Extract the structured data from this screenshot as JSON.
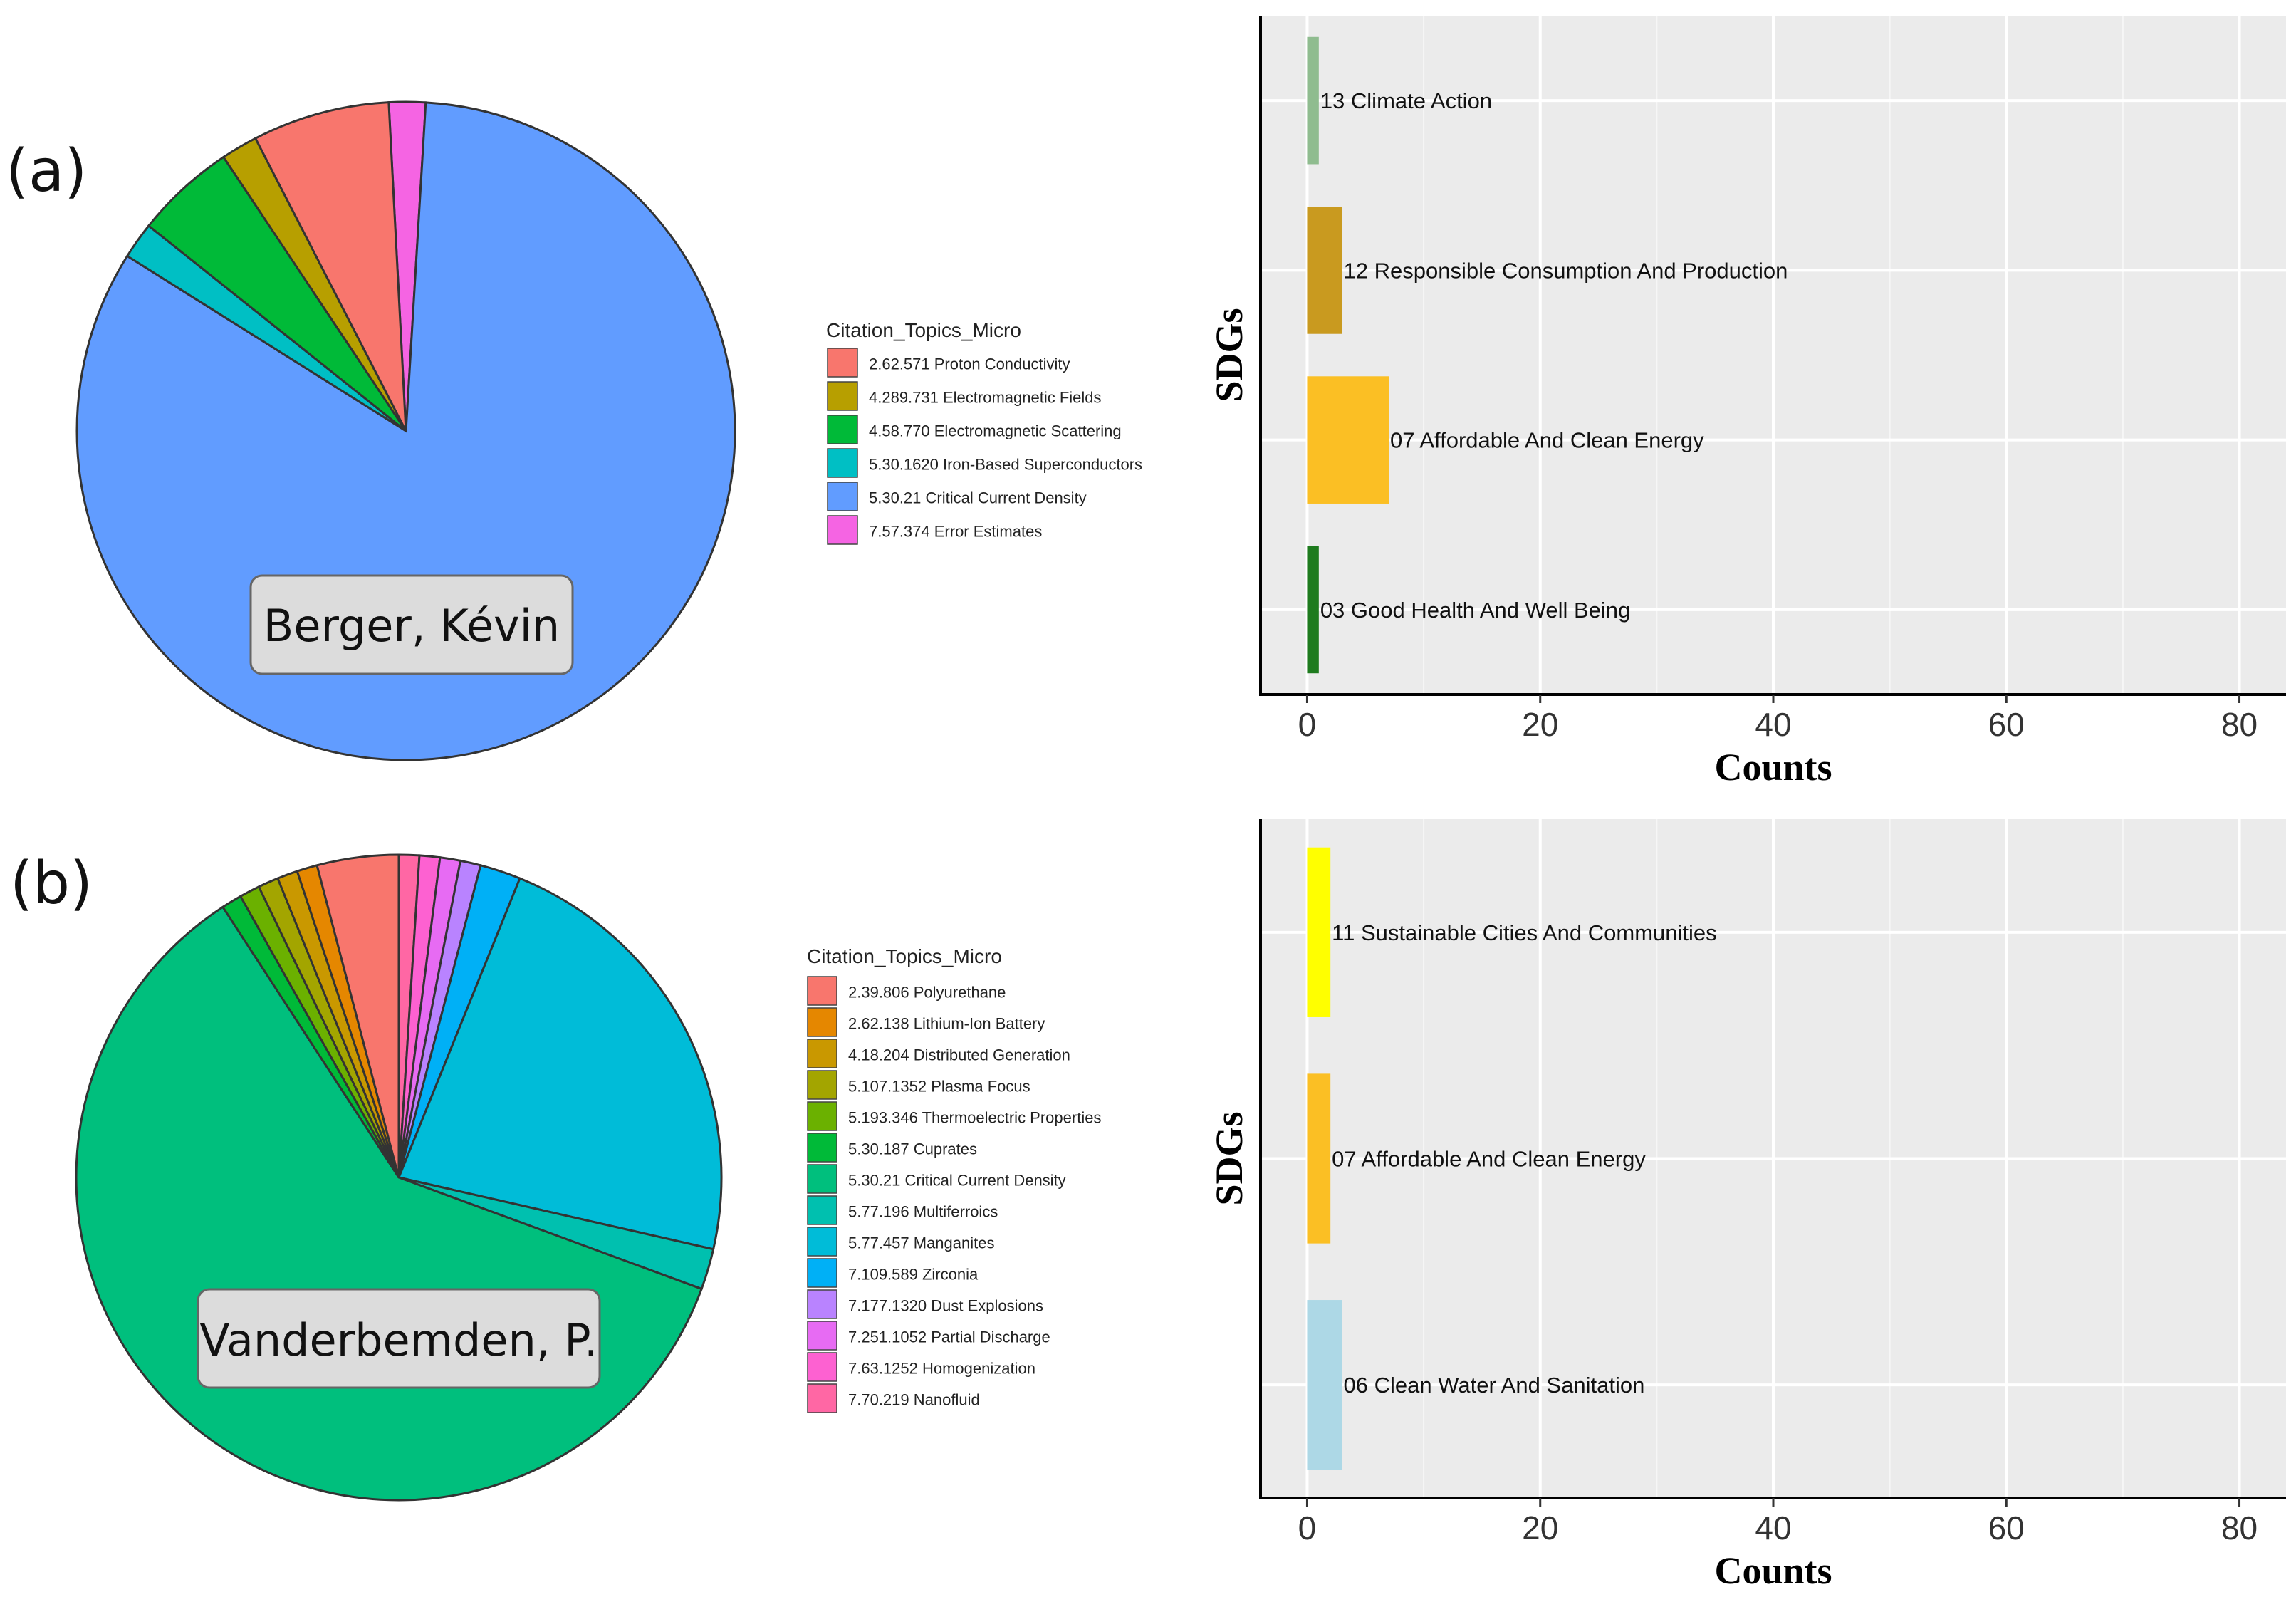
{
  "chart_data": [
    {
      "type": "pie",
      "panel": "(a)",
      "author": "Berger, Kévin",
      "legend_title": "Citation_Topics_Micro",
      "categories": [
        "2.62.571 Proton Conductivity",
        "4.289.731 Electromagnetic Fields",
        "4.58.770 Electromagnetic Scattering",
        "5.30.1620 Iron-Based Superconductors",
        "5.30.21 Critical Current Density",
        "7.57.374 Error Estimates"
      ],
      "values": [
        3,
        0.8,
        2.2,
        0.8,
        37,
        0.8
      ],
      "colors": [
        "#F8766D",
        "#B79F00",
        "#00BA38",
        "#00BFC4",
        "#619CFF",
        "#F564E3"
      ]
    },
    {
      "type": "bar",
      "orientation": "horizontal",
      "categories": [
        "03 Good Health And Well Being",
        "07 Affordable And Clean Energy",
        "12 Responsible Consumption And Production",
        "13 Climate Action"
      ],
      "values": [
        1,
        7,
        3,
        1
      ],
      "colors": [
        "#1E7B1E",
        "#FBBF24",
        "#C99A1F",
        "#8FBC8F"
      ],
      "xlabel": "Counts",
      "ylabel": "SDGs",
      "xlim": [
        -4,
        84
      ],
      "xticks": [
        0,
        20,
        40,
        60,
        80
      ]
    },
    {
      "type": "pie",
      "panel": "(b)",
      "author": "Vanderbemden, P.",
      "legend_title": "Citation_Topics_Micro",
      "categories": [
        "2.39.806 Polyurethane",
        "2.62.138 Lithium-Ion Battery",
        "4.18.204 Distributed Generation",
        "5.107.1352 Plasma Focus",
        "5.193.346 Thermoelectric Properties",
        "5.30.187 Cuprates",
        "5.30.21 Critical Current Density",
        "5.77.196 Multiferroics",
        "5.77.457 Manganites",
        "7.109.589 Zirconia",
        "7.177.1320 Dust Explosions",
        "7.251.1052 Partial Discharge",
        "7.63.1252 Homogenization",
        "7.70.219 Nanofluid"
      ],
      "values": [
        4,
        1,
        1,
        1,
        1,
        1,
        59,
        2,
        22,
        2,
        1,
        1,
        1,
        1
      ],
      "colors": [
        "#F8766D",
        "#E58700",
        "#C99800",
        "#A3A500",
        "#6BB100",
        "#00BA38",
        "#00BF7D",
        "#00C0AF",
        "#00BCD8",
        "#00B0F6",
        "#B983FF",
        "#E76BF3",
        "#FD61D1",
        "#FF67A4"
      ]
    },
    {
      "type": "bar",
      "orientation": "horizontal",
      "categories": [
        "06 Clean Water And Sanitation",
        "07 Affordable And Clean Energy",
        "11 Sustainable Cities And Communities"
      ],
      "values": [
        3,
        2,
        2
      ],
      "colors": [
        "#ADD8E6",
        "#FBBF24",
        "#FFFF00"
      ],
      "xlabel": "Counts",
      "ylabel": "SDGs",
      "xlim": [
        -4,
        84
      ],
      "xticks": [
        0,
        20,
        40,
        60,
        80
      ]
    }
  ]
}
